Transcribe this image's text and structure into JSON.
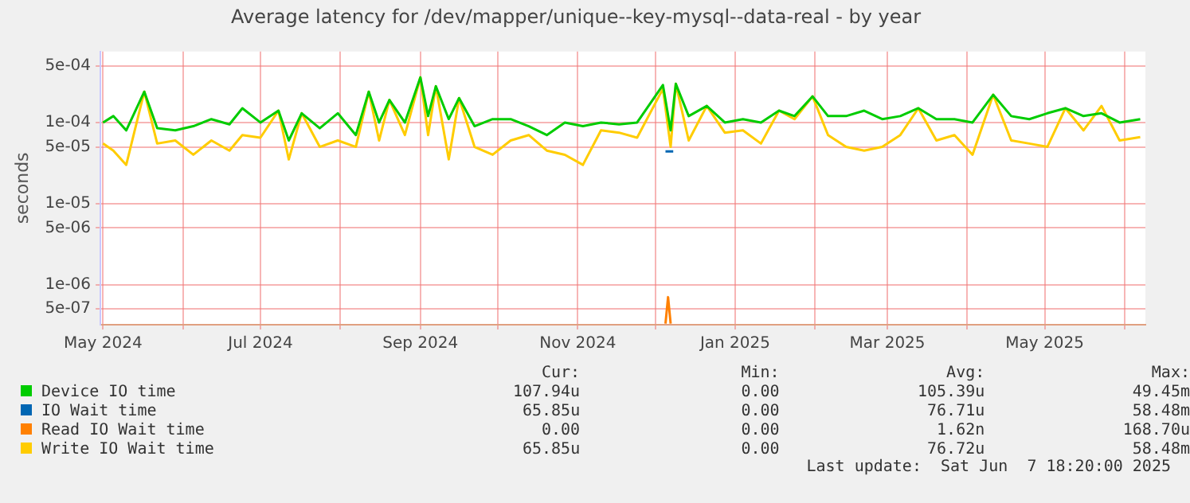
{
  "chart_data": {
    "type": "line",
    "title": "Average latency for /dev/mapper/unique--key-mysql--data-real - by year",
    "ylabel": "seconds",
    "log": "y",
    "grid": true,
    "legend": "bottom",
    "marker": "none",
    "line_style": "solid",
    "x": [
      "2024-05-01",
      "2024-05-05",
      "2024-05-10",
      "2024-05-17",
      "2024-05-22",
      "2024-05-29",
      "2024-06-05",
      "2024-06-12",
      "2024-06-19",
      "2024-06-24",
      "2024-07-01",
      "2024-07-08",
      "2024-07-12",
      "2024-07-17",
      "2024-07-24",
      "2024-07-31",
      "2024-08-07",
      "2024-08-12",
      "2024-08-16",
      "2024-08-20",
      "2024-08-26",
      "2024-09-01",
      "2024-09-04",
      "2024-09-07",
      "2024-09-12",
      "2024-09-16",
      "2024-09-22",
      "2024-09-29",
      "2024-10-06",
      "2024-10-13",
      "2024-10-20",
      "2024-10-27",
      "2024-11-03",
      "2024-11-10",
      "2024-11-17",
      "2024-11-24",
      "2024-12-04",
      "2024-12-07",
      "2024-12-09",
      "2024-12-14",
      "2024-12-21",
      "2024-12-28",
      "2025-01-04",
      "2025-01-11",
      "2025-01-18",
      "2025-01-24",
      "2025-01-31",
      "2025-02-06",
      "2025-02-13",
      "2025-02-20",
      "2025-02-27",
      "2025-03-06",
      "2025-03-13",
      "2025-03-20",
      "2025-03-27",
      "2025-04-03",
      "2025-04-11",
      "2025-04-18",
      "2025-04-25",
      "2025-05-02",
      "2025-05-09",
      "2025-05-16",
      "2025-05-23",
      "2025-05-30",
      "2025-06-07"
    ],
    "xlim": [
      "2024-04-30",
      "2025-06-09"
    ],
    "xticks": [
      {
        "value": "2024-05-01",
        "label": "May 2024"
      },
      {
        "value": "2024-06-01",
        "label": null
      },
      {
        "value": "2024-07-01",
        "label": "Jul 2024"
      },
      {
        "value": "2024-08-01",
        "label": null
      },
      {
        "value": "2024-09-01",
        "label": "Sep 2024"
      },
      {
        "value": "2024-10-01",
        "label": null
      },
      {
        "value": "2024-11-01",
        "label": "Nov 2024"
      },
      {
        "value": "2024-12-01",
        "label": null
      },
      {
        "value": "2025-01-01",
        "label": "Jan 2025"
      },
      {
        "value": "2025-02-01",
        "label": null
      },
      {
        "value": "2025-03-01",
        "label": "Mar 2025"
      },
      {
        "value": "2025-04-01",
        "label": null
      },
      {
        "value": "2025-05-01",
        "label": "May 2025"
      },
      {
        "value": "2025-06-01",
        "label": null
      }
    ],
    "ylim": [
      3.2e-07,
      0.00075
    ],
    "yticks": [
      {
        "value": 5e-07,
        "label": "5e-07"
      },
      {
        "value": 1e-06,
        "label": "1e-06"
      },
      {
        "value": 5e-06,
        "label": "5e-06"
      },
      {
        "value": 1e-05,
        "label": "1e-05"
      },
      {
        "value": 5e-05,
        "label": "5e-05"
      },
      {
        "value": 0.0001,
        "label": "1e-04"
      },
      {
        "value": 0.0005,
        "label": "5e-04"
      }
    ],
    "series": [
      {
        "name": "Device IO time",
        "color": "#00cc00",
        "values": [
          0.0001,
          0.00012,
          8e-05,
          0.00024,
          8.5e-05,
          8e-05,
          9e-05,
          0.00011,
          9.5e-05,
          0.00015,
          0.0001,
          0.00014,
          6e-05,
          0.00013,
          8.5e-05,
          0.00013,
          7e-05,
          0.00024,
          0.0001,
          0.00019,
          0.0001,
          0.00036,
          0.00012,
          0.00028,
          0.00011,
          0.0002,
          9e-05,
          0.00011,
          0.00011,
          9e-05,
          7e-05,
          0.0001,
          9e-05,
          0.0001,
          9.5e-05,
          0.0001,
          0.00029,
          8e-05,
          0.0003,
          0.00012,
          0.00016,
          0.0001,
          0.00011,
          0.0001,
          0.00014,
          0.00012,
          0.00021,
          0.00012,
          0.00012,
          0.00014,
          0.00011,
          0.00012,
          0.00015,
          0.00011,
          0.00011,
          0.0001,
          0.00022,
          0.00012,
          0.00011,
          0.00013,
          0.00015,
          0.00012,
          0.00013,
          0.0001,
          0.00011
        ]
      },
      {
        "name": "IO Wait time",
        "color": "#0066b3",
        "x": [
          "2024-12-05",
          "2024-12-08"
        ],
        "values": [
          4.4e-05,
          4.4e-05
        ]
      },
      {
        "name": "Read IO Wait time",
        "color": "#ff8000",
        "x": [
          "2024-12-05",
          "2024-12-06",
          "2024-12-07"
        ],
        "values": [
          3.3e-07,
          7e-07,
          3.3e-07
        ]
      },
      {
        "name": "Write IO Wait time",
        "color": "#ffcc00",
        "values": [
          5.5e-05,
          4.5e-05,
          3e-05,
          0.00024,
          5.5e-05,
          6e-05,
          4e-05,
          6e-05,
          4.5e-05,
          7e-05,
          6.5e-05,
          0.00014,
          3.5e-05,
          0.00013,
          5e-05,
          6e-05,
          5e-05,
          0.00024,
          6e-05,
          0.00019,
          7e-05,
          0.00036,
          7e-05,
          0.00028,
          3.5e-05,
          0.0002,
          5e-05,
          4e-05,
          6e-05,
          7e-05,
          4.5e-05,
          4e-05,
          3e-05,
          8e-05,
          7.5e-05,
          6.5e-05,
          0.00026,
          5e-05,
          0.0003,
          6e-05,
          0.00016,
          7.5e-05,
          8e-05,
          5.5e-05,
          0.00014,
          0.00011,
          0.00021,
          7e-05,
          5e-05,
          4.5e-05,
          5e-05,
          7e-05,
          0.00015,
          6e-05,
          7e-05,
          4e-05,
          0.00022,
          6e-05,
          5.5e-05,
          5e-05,
          0.00015,
          8e-05,
          0.00016,
          6e-05,
          6.6e-05
        ]
      }
    ],
    "annotations": [
      "Cur:",
      "Min:",
      "Avg:",
      "Max:",
      "107.94u",
      "0.00",
      "105.39u",
      "49.45m",
      "65.85u",
      "0.00",
      "76.71u",
      "58.48m",
      "0.00",
      "0.00",
      "1.62n",
      "168.70u",
      "65.85u",
      "0.00",
      "76.72u",
      "58.48m",
      "Last update:  Sat Jun  7 18:20:00 2025"
    ]
  }
}
